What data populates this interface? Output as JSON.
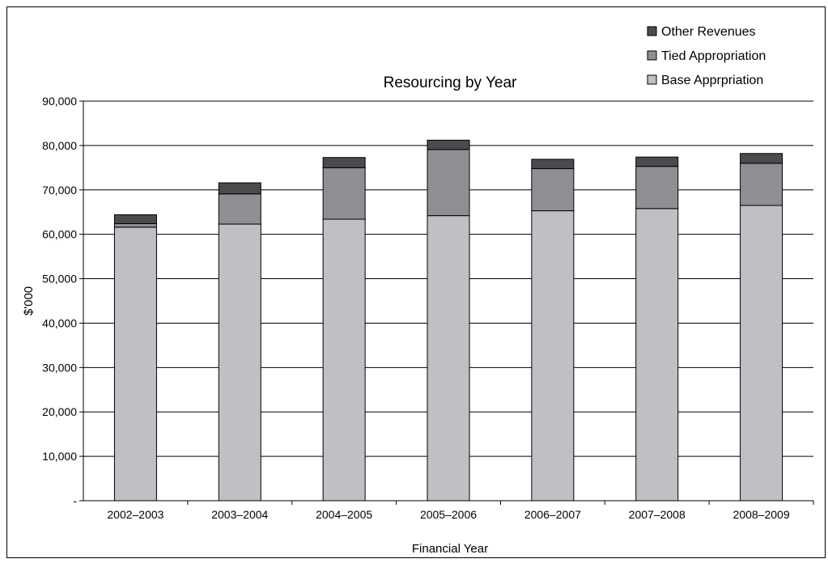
{
  "chart_data": {
    "type": "bar",
    "stacked": true,
    "title": "Resourcing by Year",
    "xlabel": "Financial Year",
    "ylabel": "$'000",
    "categories": [
      "2002–2003",
      "2003–2004",
      "2004–2005",
      "2005–2006",
      "2006–2007",
      "2007–2008",
      "2008–2009"
    ],
    "series": [
      {
        "name": "Base Apprpriation",
        "color": "#c0c0c4",
        "values": [
          61600,
          62300,
          63400,
          64200,
          65300,
          65800,
          66500
        ]
      },
      {
        "name": "Tied Appropriation",
        "color": "#8f8f93",
        "values": [
          800,
          6800,
          11600,
          14900,
          9500,
          9500,
          9500
        ]
      },
      {
        "name": "Other Revenues",
        "color": "#4b4b4f",
        "values": [
          2000,
          2500,
          2300,
          2100,
          2100,
          2100,
          2200
        ]
      }
    ],
    "ylim": [
      0,
      90000
    ],
    "yticks": [
      0,
      10000,
      20000,
      30000,
      40000,
      50000,
      60000,
      70000,
      80000,
      90000
    ],
    "ytick_labels": [
      "-",
      "10,000",
      "20,000",
      "30,000",
      "40,000",
      "50,000",
      "60,000",
      "70,000",
      "80,000",
      "90,000"
    ],
    "grid": true,
    "legend_position": "top-right"
  }
}
